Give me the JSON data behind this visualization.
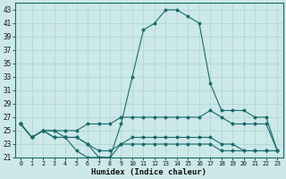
{
  "xlabel": "Humidex (Indice chaleur)",
  "xlim": [
    -0.5,
    23.5
  ],
  "ylim": [
    21,
    44
  ],
  "yticks": [
    21,
    23,
    25,
    27,
    29,
    31,
    33,
    35,
    37,
    39,
    41,
    43
  ],
  "xticks": [
    0,
    1,
    2,
    3,
    4,
    5,
    6,
    7,
    8,
    9,
    10,
    11,
    12,
    13,
    14,
    15,
    16,
    17,
    18,
    19,
    20,
    21,
    22,
    23
  ],
  "background_color": "#cce8e8",
  "grid_color": "#aad4d4",
  "line_color": "#1a6b6b",
  "series": [
    [
      26,
      24,
      25,
      24,
      24,
      22,
      21,
      21,
      21,
      23,
      23,
      23,
      23,
      23,
      23,
      23,
      23,
      23,
      22,
      22,
      22,
      22,
      22,
      22
    ],
    [
      26,
      24,
      25,
      24,
      24,
      24,
      23,
      22,
      22,
      23,
      24,
      24,
      24,
      24,
      24,
      24,
      24,
      24,
      23,
      23,
      22,
      22,
      22,
      22
    ],
    [
      26,
      24,
      25,
      25,
      25,
      25,
      26,
      26,
      26,
      27,
      27,
      27,
      27,
      27,
      27,
      27,
      27,
      28,
      27,
      26,
      26,
      26,
      26,
      22
    ],
    [
      26,
      24,
      25,
      25,
      24,
      24,
      23,
      21,
      21,
      26,
      33,
      40,
      41,
      43,
      43,
      42,
      41,
      32,
      28,
      28,
      28,
      27,
      27,
      22
    ]
  ]
}
